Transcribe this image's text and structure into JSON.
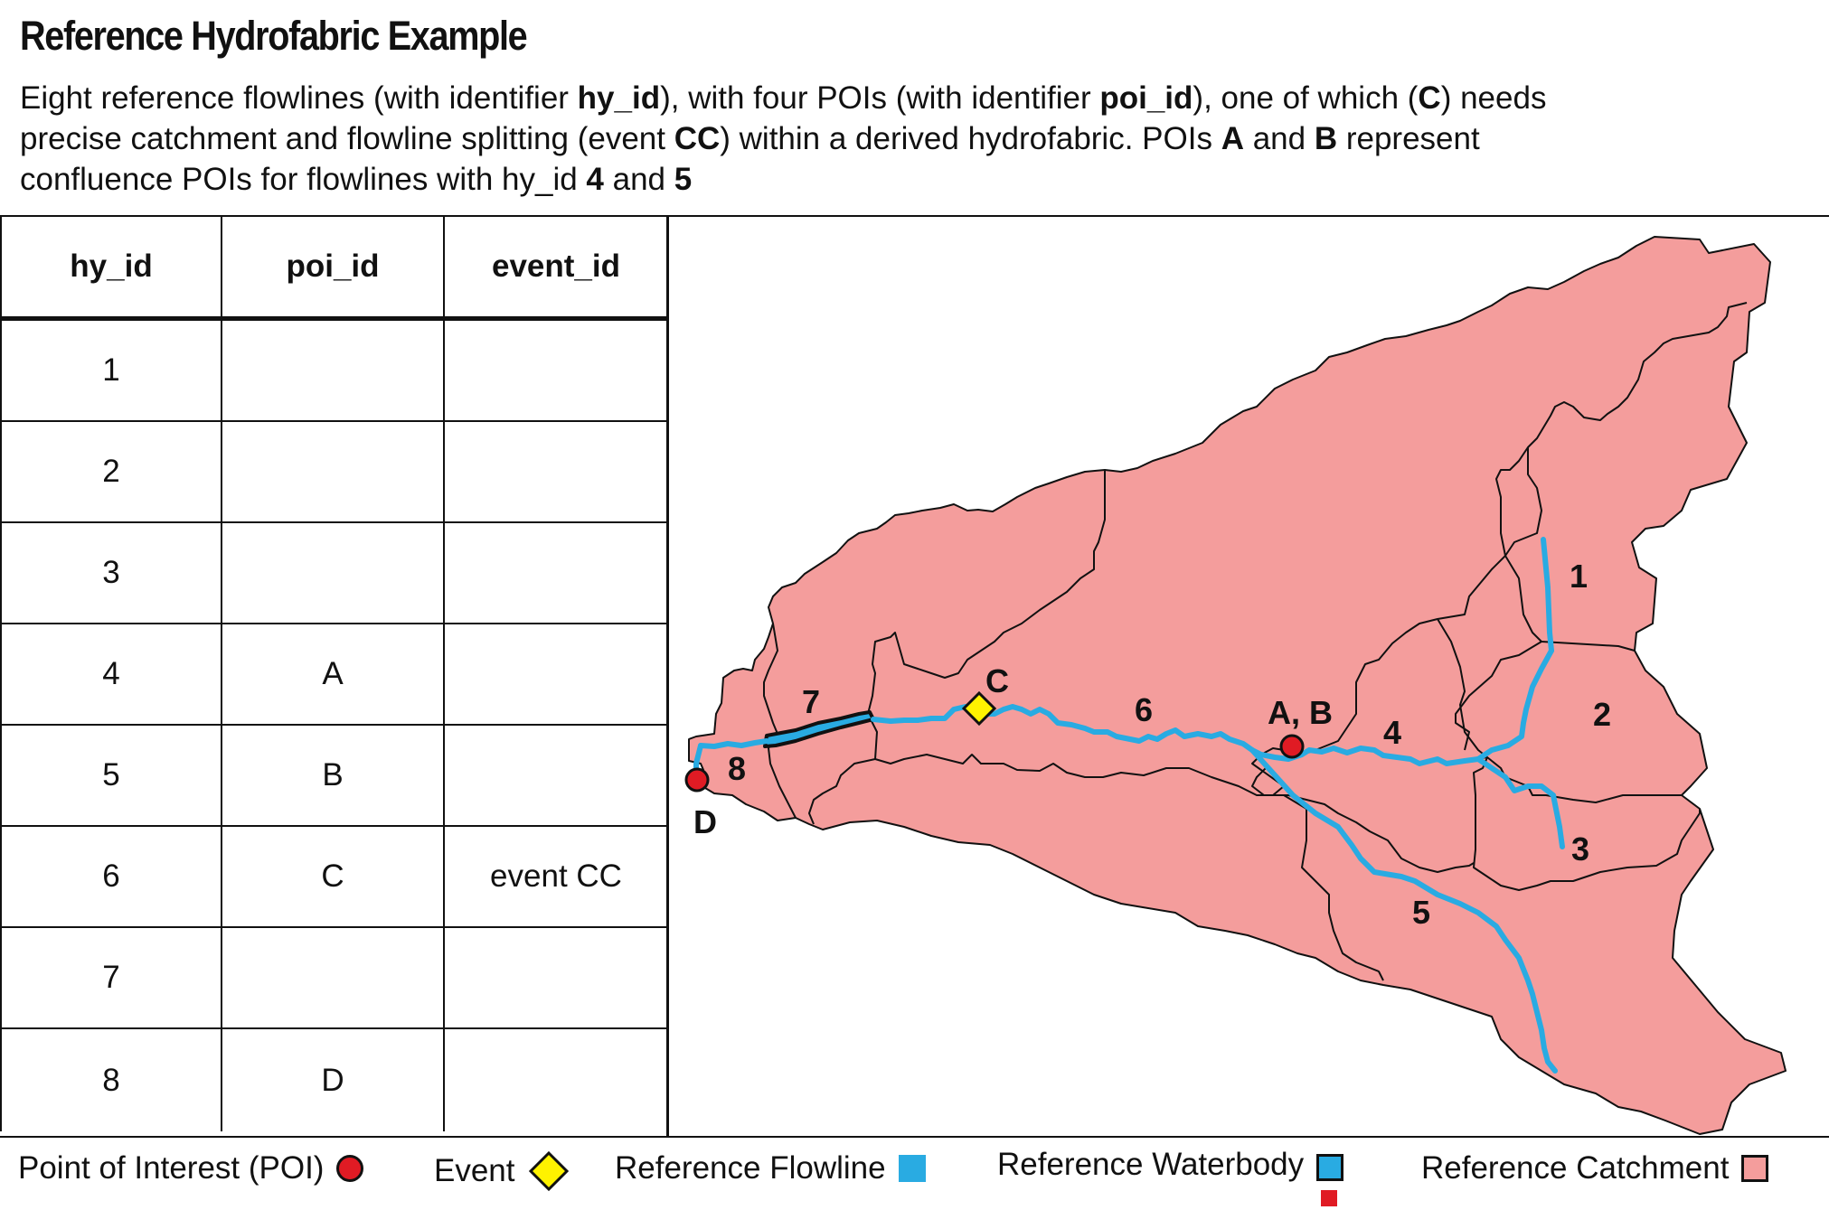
{
  "title": "Reference Hydrofabric Example",
  "description": {
    "line1": [
      {
        "t": "Eight reference flowlines (with identifier ",
        "b": false
      },
      {
        "t": "hy_id",
        "b": true
      },
      {
        "t": "), with four POIs (with identifier ",
        "b": false
      },
      {
        "t": "poi_id",
        "b": true
      },
      {
        "t": "), one of which (",
        "b": false
      },
      {
        "t": "C",
        "b": true
      },
      {
        "t": ") needs",
        "b": false
      }
    ],
    "line2": [
      {
        "t": "precise catchment and flowline splitting (event ",
        "b": false
      },
      {
        "t": "CC",
        "b": true
      },
      {
        "t": ") within a derived hydrofabric.  POIs ",
        "b": false
      },
      {
        "t": "A",
        "b": true
      },
      {
        "t": " and ",
        "b": false
      },
      {
        "t": "B",
        "b": true
      },
      {
        "t": " represent",
        "b": false
      }
    ],
    "line3": [
      {
        "t": "confluence POIs for flowlines with hy_id ",
        "b": false
      },
      {
        "t": "4",
        "b": true
      },
      {
        "t": " and ",
        "b": false
      },
      {
        "t": "5",
        "b": true
      }
    ]
  },
  "table": {
    "headers": [
      "hy_id",
      "poi_id",
      "event_id"
    ],
    "rows": [
      [
        "1",
        "",
        ""
      ],
      [
        "2",
        "",
        ""
      ],
      [
        "3",
        "",
        ""
      ],
      [
        "4",
        "A",
        ""
      ],
      [
        "5",
        "B",
        ""
      ],
      [
        "6",
        "C",
        "event CC"
      ],
      [
        "7",
        "",
        ""
      ],
      [
        "8",
        "D",
        ""
      ]
    ]
  },
  "map": {
    "flowline_labels": [
      "1",
      "2",
      "3",
      "4",
      "5",
      "6",
      "7",
      "8"
    ],
    "poi_labels": {
      "ab": "A, B",
      "c": "C",
      "d": "D"
    },
    "colors": {
      "catchment_fill": "#f49d9c",
      "flowline": "#29abe2",
      "poi": "#e01b24",
      "event": "#fff200",
      "outline": "#111111"
    }
  },
  "legend": {
    "poi": "Point of Interest (POI)",
    "event": "Event",
    "flowline": "Reference Flowline",
    "waterbody": "Reference Waterbody",
    "catchment": "Reference Catchment"
  }
}
